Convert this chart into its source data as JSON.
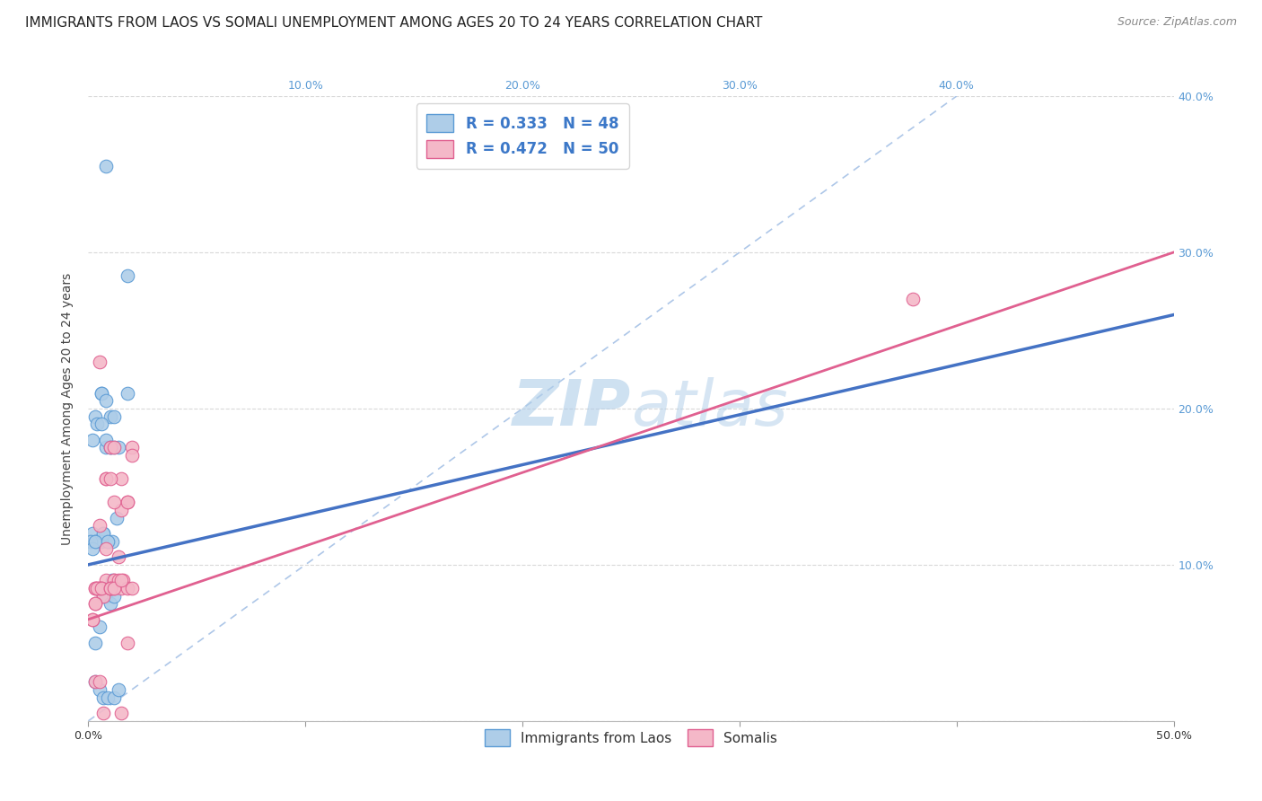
{
  "title": "IMMIGRANTS FROM LAOS VS SOMALI UNEMPLOYMENT AMONG AGES 20 TO 24 YEARS CORRELATION CHART",
  "source": "Source: ZipAtlas.com",
  "ylabel": "Unemployment Among Ages 20 to 24 years",
  "xlim": [
    0,
    0.5
  ],
  "ylim": [
    0,
    0.4
  ],
  "xticks": [
    0.0,
    0.1,
    0.2,
    0.3,
    0.4,
    0.5
  ],
  "yticks": [
    0.0,
    0.1,
    0.2,
    0.3,
    0.4
  ],
  "right_ytick_labels": [
    "",
    "10.0%",
    "20.0%",
    "30.0%",
    "40.0%"
  ],
  "top_xtick_labels": [
    "",
    "10.0%",
    "20.0%",
    "30.0%",
    "40.0%",
    ""
  ],
  "bottom_x_left": "0.0%",
  "bottom_x_right": "50.0%",
  "legend_label1": "R = 0.333   N = 48",
  "legend_label2": "R = 0.472   N = 50",
  "color_blue": "#aecde8",
  "color_pink": "#f4b8c8",
  "color_blue_edge": "#5b9bd5",
  "color_pink_edge": "#e06090",
  "color_blue_line": "#4472c4",
  "color_pink_line": "#e06090",
  "color_diag": "#aec7e8",
  "watermark_zip": "ZIP",
  "watermark_atlas": "atlas",
  "watermark_color": "#c5d9f0",
  "title_fontsize": 11,
  "source_fontsize": 9,
  "axis_label_fontsize": 10,
  "tick_fontsize": 9,
  "legend_fontsize": 12,
  "watermark_fontsize": 52,
  "background_color": "#ffffff",
  "grid_color": "#d9d9d9",
  "blue_scatter_x": [
    0.008,
    0.018,
    0.003,
    0.006,
    0.004,
    0.002,
    0.001,
    0.003,
    0.005,
    0.007,
    0.009,
    0.011,
    0.013,
    0.006,
    0.008,
    0.01,
    0.012,
    0.008,
    0.01,
    0.012,
    0.014,
    0.002,
    0.003,
    0.004,
    0.006,
    0.007,
    0.001,
    0.002,
    0.003,
    0.018,
    0.006,
    0.008,
    0.01,
    0.008,
    0.009,
    0.011,
    0.003,
    0.005,
    0.007,
    0.009,
    0.003,
    0.005,
    0.007,
    0.009,
    0.012,
    0.014,
    0.01,
    0.012
  ],
  "blue_scatter_y": [
    0.355,
    0.285,
    0.195,
    0.21,
    0.19,
    0.18,
    0.115,
    0.115,
    0.115,
    0.12,
    0.115,
    0.115,
    0.13,
    0.21,
    0.205,
    0.195,
    0.195,
    0.175,
    0.175,
    0.175,
    0.175,
    0.12,
    0.115,
    0.115,
    0.115,
    0.12,
    0.115,
    0.11,
    0.115,
    0.21,
    0.19,
    0.18,
    0.175,
    0.08,
    0.085,
    0.09,
    0.05,
    0.06,
    0.08,
    0.115,
    0.025,
    0.02,
    0.015,
    0.015,
    0.015,
    0.02,
    0.075,
    0.08
  ],
  "pink_scatter_x": [
    0.005,
    0.008,
    0.01,
    0.012,
    0.015,
    0.018,
    0.02,
    0.005,
    0.008,
    0.01,
    0.012,
    0.014,
    0.003,
    0.004,
    0.006,
    0.007,
    0.002,
    0.003,
    0.005,
    0.01,
    0.012,
    0.015,
    0.018,
    0.005,
    0.008,
    0.01,
    0.012,
    0.003,
    0.004,
    0.006,
    0.002,
    0.003,
    0.01,
    0.012,
    0.015,
    0.014,
    0.016,
    0.018,
    0.02,
    0.003,
    0.005,
    0.007,
    0.38,
    0.015,
    0.018,
    0.008,
    0.01,
    0.012,
    0.015,
    0.02
  ],
  "pink_scatter_y": [
    0.23,
    0.155,
    0.175,
    0.175,
    0.155,
    0.14,
    0.175,
    0.085,
    0.09,
    0.085,
    0.09,
    0.105,
    0.085,
    0.085,
    0.085,
    0.08,
    0.065,
    0.075,
    0.085,
    0.085,
    0.09,
    0.135,
    0.14,
    0.125,
    0.155,
    0.155,
    0.14,
    0.085,
    0.085,
    0.085,
    0.065,
    0.075,
    0.085,
    0.085,
    0.085,
    0.09,
    0.09,
    0.085,
    0.085,
    0.025,
    0.025,
    0.005,
    0.27,
    0.005,
    0.05,
    0.11,
    0.085,
    0.085,
    0.09,
    0.17
  ],
  "blue_line_x": [
    0.0,
    0.5
  ],
  "blue_line_y": [
    0.1,
    0.26
  ],
  "pink_line_x": [
    0.0,
    0.5
  ],
  "pink_line_y": [
    0.065,
    0.3
  ],
  "diag_line_x": [
    0.0,
    0.4
  ],
  "diag_line_y": [
    0.0,
    0.4
  ]
}
